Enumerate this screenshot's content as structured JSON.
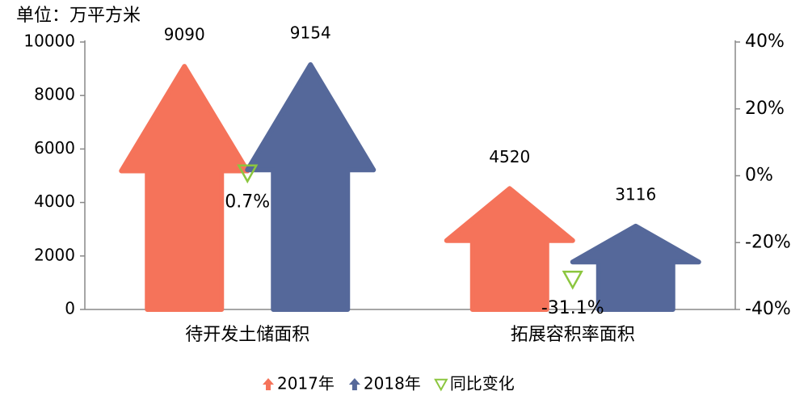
{
  "chart_data": {
    "type": "bar",
    "y_label": "单位：万平方米",
    "categories": [
      "待开发土储面积",
      "拓展容积率面积"
    ],
    "series": [
      {
        "name": "2017年",
        "color": "#f5735a",
        "values": [
          9090,
          4520
        ]
      },
      {
        "name": "2018年",
        "color": "#55689a",
        "values": [
          9154,
          3116
        ]
      },
      {
        "name": "同比变化",
        "type": "scatter",
        "axis": "y2",
        "color": "#8cc63f",
        "values": [
          0.7,
          -31.1
        ],
        "value_labels": [
          "0.7%",
          "-31.1%"
        ]
      }
    ],
    "ylim": [
      0,
      10000
    ],
    "yticks": [
      0,
      2000,
      4000,
      6000,
      8000,
      10000
    ],
    "y2lim": [
      -40,
      40
    ],
    "y2ticks": [
      {
        "value": -40,
        "label": "-40%"
      },
      {
        "value": -20,
        "label": "-20%"
      },
      {
        "value": 0,
        "label": "0%"
      },
      {
        "value": 20,
        "label": "20%"
      },
      {
        "value": 40,
        "label": "40%"
      }
    ],
    "legend": "bottom"
  }
}
